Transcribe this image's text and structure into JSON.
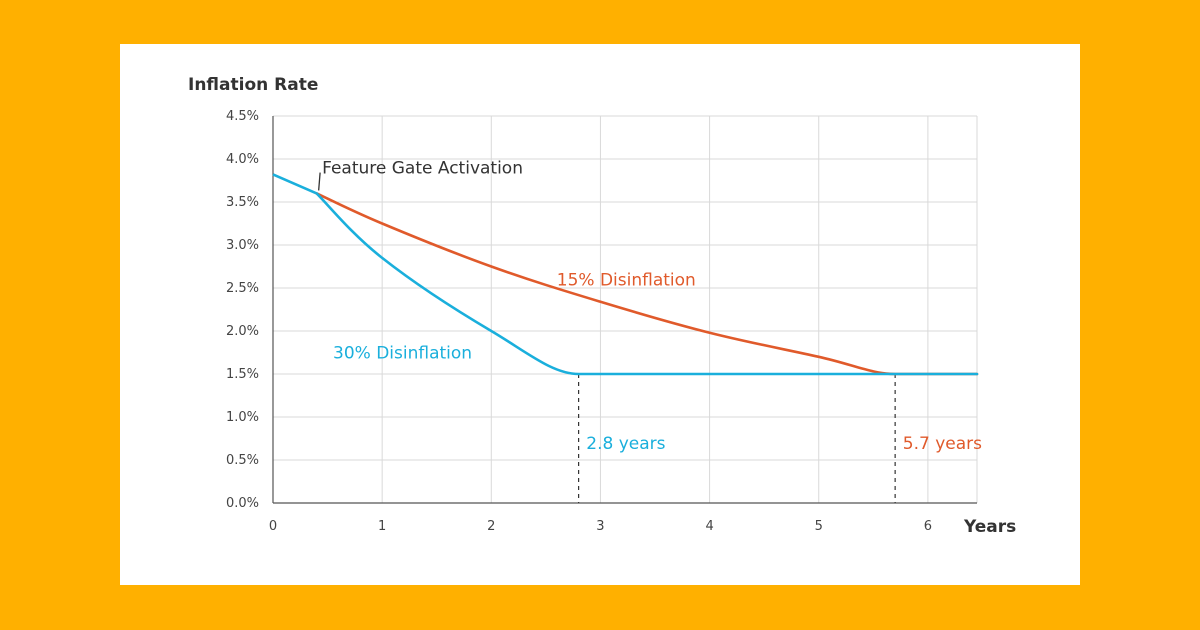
{
  "chart_data": {
    "type": "line",
    "title": "",
    "xlabel": "Years",
    "ylabel": "Inflation Rate",
    "xlim": [
      0,
      6.45
    ],
    "ylim": [
      0,
      4.5
    ],
    "x_ticks": [
      0,
      1,
      2,
      3,
      4,
      5,
      6
    ],
    "x_tick_labels": [
      "0",
      "1",
      "2",
      "3",
      "4",
      "5",
      "6"
    ],
    "y_ticks": [
      0,
      0.5,
      1.0,
      1.5,
      2.0,
      2.5,
      3.0,
      3.5,
      4.0,
      4.5
    ],
    "y_tick_labels": [
      "0.0%",
      "0.5%",
      "1.0%",
      "1.5%",
      "2.0%",
      "2.5%",
      "3.0%",
      "3.5%",
      "4.0%",
      "4.5%"
    ],
    "grid": true,
    "series": [
      {
        "name": "15% Disinflation",
        "color": "#E05A2B",
        "points": [
          [
            0.4,
            3.6
          ],
          [
            1.0,
            3.25
          ],
          [
            2.0,
            2.75
          ],
          [
            3.0,
            2.34
          ],
          [
            4.0,
            1.98
          ],
          [
            5.0,
            1.7
          ],
          [
            5.7,
            1.5
          ],
          [
            6.45,
            1.5
          ]
        ]
      },
      {
        "name": "30% Disinflation",
        "color": "#1AAFDC",
        "points": [
          [
            0.4,
            3.6
          ],
          [
            1.0,
            2.85
          ],
          [
            2.0,
            2.0
          ],
          [
            2.8,
            1.5
          ],
          [
            6.45,
            1.5
          ]
        ]
      }
    ],
    "preactivation": {
      "color": "#1AAFDC",
      "points": [
        [
          0,
          3.82
        ],
        [
          0.4,
          3.6
        ]
      ]
    },
    "annotations": [
      {
        "text": "Feature Gate Activation",
        "x": 0.45,
        "y": 3.9,
        "color": "#333333",
        "pointer_x": 0.4,
        "pointer_y": 3.6
      },
      {
        "text": "15% Disinflation",
        "x": 2.6,
        "y": 2.6,
        "color": "#E05A2B"
      },
      {
        "text": "30% Disinflation",
        "x": 0.55,
        "y": 1.75,
        "color": "#1AAFDC"
      },
      {
        "text": "2.8 years",
        "x": 2.87,
        "y": 0.7,
        "color": "#1AAFDC"
      },
      {
        "text": "5.7 years",
        "x": 5.77,
        "y": 0.7,
        "color": "#E05A2B"
      }
    ],
    "dashed_markers": [
      {
        "x": 2.8,
        "y": 1.5
      },
      {
        "x": 5.7,
        "y": 1.5
      }
    ]
  }
}
